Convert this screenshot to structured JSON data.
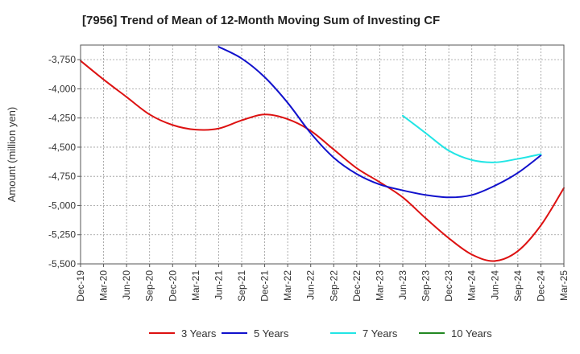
{
  "chart_data": {
    "type": "line",
    "title": "[7956]  Trend of Mean of 12-Month Moving Sum of Investing CF",
    "xlabel": "",
    "ylabel": "Amount (million yen)",
    "ylim": [
      -5500,
      -3625
    ],
    "yticks": [
      -3750,
      -4000,
      -4250,
      -4500,
      -4750,
      -5000,
      -5250,
      -5500
    ],
    "ytick_labels": [
      "-3,750",
      "-4,000",
      "-4,250",
      "-4,500",
      "-4,750",
      "-5,000",
      "-5,250",
      "-5,500"
    ],
    "xtick_labels": [
      "Dec-19",
      "Mar-20",
      "Jun-20",
      "Sep-20",
      "Dec-20",
      "Mar-21",
      "Jun-21",
      "Sep-21",
      "Dec-21",
      "Mar-22",
      "Jun-22",
      "Sep-22",
      "Dec-22",
      "Mar-23",
      "Jun-23",
      "Sep-23",
      "Dec-23",
      "Mar-24",
      "Jun-24",
      "Sep-24",
      "Dec-24",
      "Mar-25"
    ],
    "grid": true,
    "legend_position": "bottom",
    "series": [
      {
        "name": "3 Years",
        "color": "#dd1111",
        "start_index": 0,
        "values": [
          -3760,
          -3920,
          -4070,
          -4220,
          -4310,
          -4350,
          -4340,
          -4270,
          -4220,
          -4260,
          -4360,
          -4520,
          -4680,
          -4800,
          -4930,
          -5110,
          -5280,
          -5420,
          -5475,
          -5390,
          -5170,
          -4850
        ]
      },
      {
        "name": "5 Years",
        "color": "#1111cc",
        "start_index": 6,
        "values": [
          -3640,
          -3740,
          -3900,
          -4120,
          -4380,
          -4590,
          -4730,
          -4820,
          -4870,
          -4910,
          -4930,
          -4910,
          -4830,
          -4720,
          -4570
        ]
      },
      {
        "name": "7 Years",
        "color": "#22e5e5",
        "start_index": 14,
        "values": [
          -4230,
          -4380,
          -4530,
          -4610,
          -4630,
          -4600,
          -4560
        ]
      },
      {
        "name": "10 Years",
        "color": "#228822",
        "start_index": 0,
        "values": []
      }
    ]
  }
}
